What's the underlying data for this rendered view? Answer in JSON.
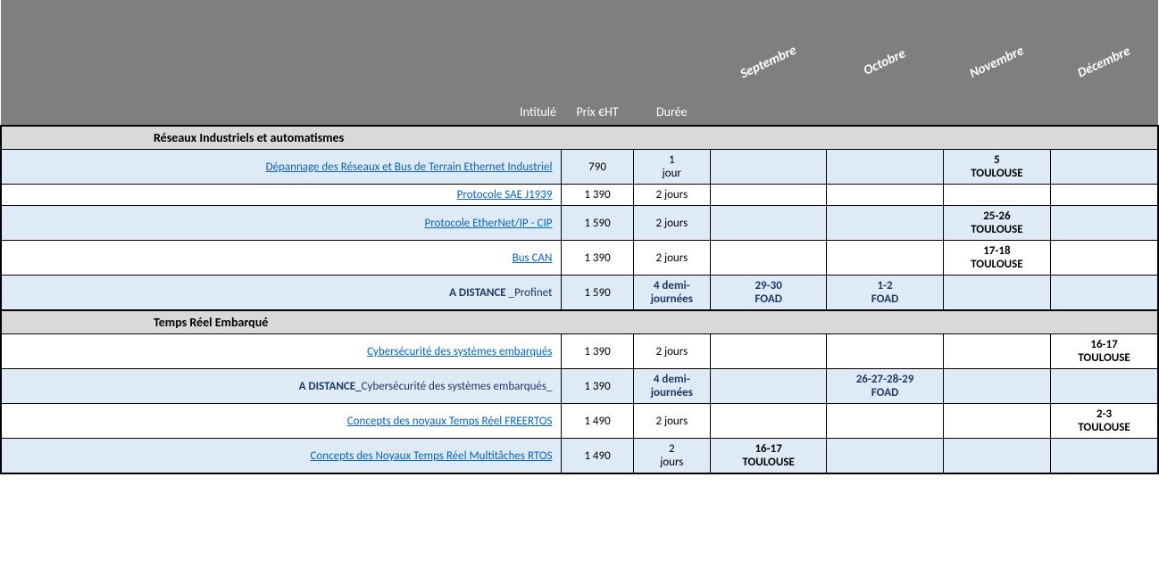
{
  "colors": {
    "header_bg": "#7f7f7f",
    "header_text": "#ffffff",
    "section_bg": "#d9d9d9",
    "alt_row_bg": "#deeaf6",
    "link_color": "#0563c1",
    "foad_color": "#1f3864",
    "border_color": "#000000"
  },
  "header": {
    "title": "Intitulé",
    "price": "Prix €HT",
    "duration": "Durée",
    "months": [
      "Septembre",
      "Octobre",
      "Novembre",
      "Décembre"
    ]
  },
  "sections": [
    {
      "label": "Réseaux Industriels et automatismes",
      "rows": [
        {
          "alt": true,
          "link": true,
          "title": "Dépannage des Réseaux et Bus de Terrain Ethernet Industriel",
          "price": "790",
          "duration_html": "1<br>jour",
          "months": [
            "",
            "",
            "5<br>TOULOUSE",
            ""
          ]
        },
        {
          "alt": false,
          "link": true,
          "title": "Protocole SAE J1939",
          "price": "1 390",
          "duration_html": "2 jours",
          "months": [
            "",
            "",
            "",
            ""
          ]
        },
        {
          "alt": true,
          "link": true,
          "title": "Protocole EtherNet/IP - CIP",
          "price": "1 590",
          "duration_html": "2 jours",
          "months": [
            "",
            "",
            "25-26<br>TOULOUSE",
            ""
          ]
        },
        {
          "alt": false,
          "link": true,
          "title": "Bus CAN",
          "price": "1 390",
          "duration_html": "2 jours",
          "months": [
            "",
            "",
            "17-18<br>TOULOUSE",
            ""
          ]
        },
        {
          "alt": true,
          "link": false,
          "foad": true,
          "title_prefix": "A DISTANCE ",
          "title_suffix": "_Profinet",
          "price": "1 590",
          "duration_html": "4 demi-<br>journées",
          "months": [
            "29-30<br>FOAD",
            "1-2<br>FOAD",
            "",
            ""
          ]
        }
      ]
    },
    {
      "label": "Temps Réel Embarqué",
      "rows": [
        {
          "alt": false,
          "link": true,
          "title": "Cybersécurité des systèmes embarqués",
          "price": "1 390",
          "duration_html": "2 jours",
          "months": [
            "",
            "",
            "",
            "16-17<br>TOULOUSE"
          ]
        },
        {
          "alt": true,
          "link": false,
          "foad": true,
          "title_prefix": "A DISTANCE_",
          "title_suffix": "Cybersécurité des systèmes embarqués_",
          "price": "1 390",
          "duration_html": "4 demi-<br>journées",
          "months": [
            "",
            "26-27-28-29<br>FOAD",
            "",
            ""
          ]
        },
        {
          "alt": false,
          "link": true,
          "title": "Concepts des noyaux Temps Réel FREERTOS",
          "price": "1 490",
          "duration_html": "2 jours",
          "months": [
            "",
            "",
            "",
            "2-3<br>TOULOUSE"
          ]
        },
        {
          "alt": true,
          "link": true,
          "last": true,
          "title": "Concepts des Noyaux Temps Réel Multitâches RTOS",
          "price": "1 490",
          "duration_html": "2<br>jours",
          "months": [
            "16-17<br>TOULOUSE",
            "",
            "",
            ""
          ]
        }
      ]
    }
  ]
}
